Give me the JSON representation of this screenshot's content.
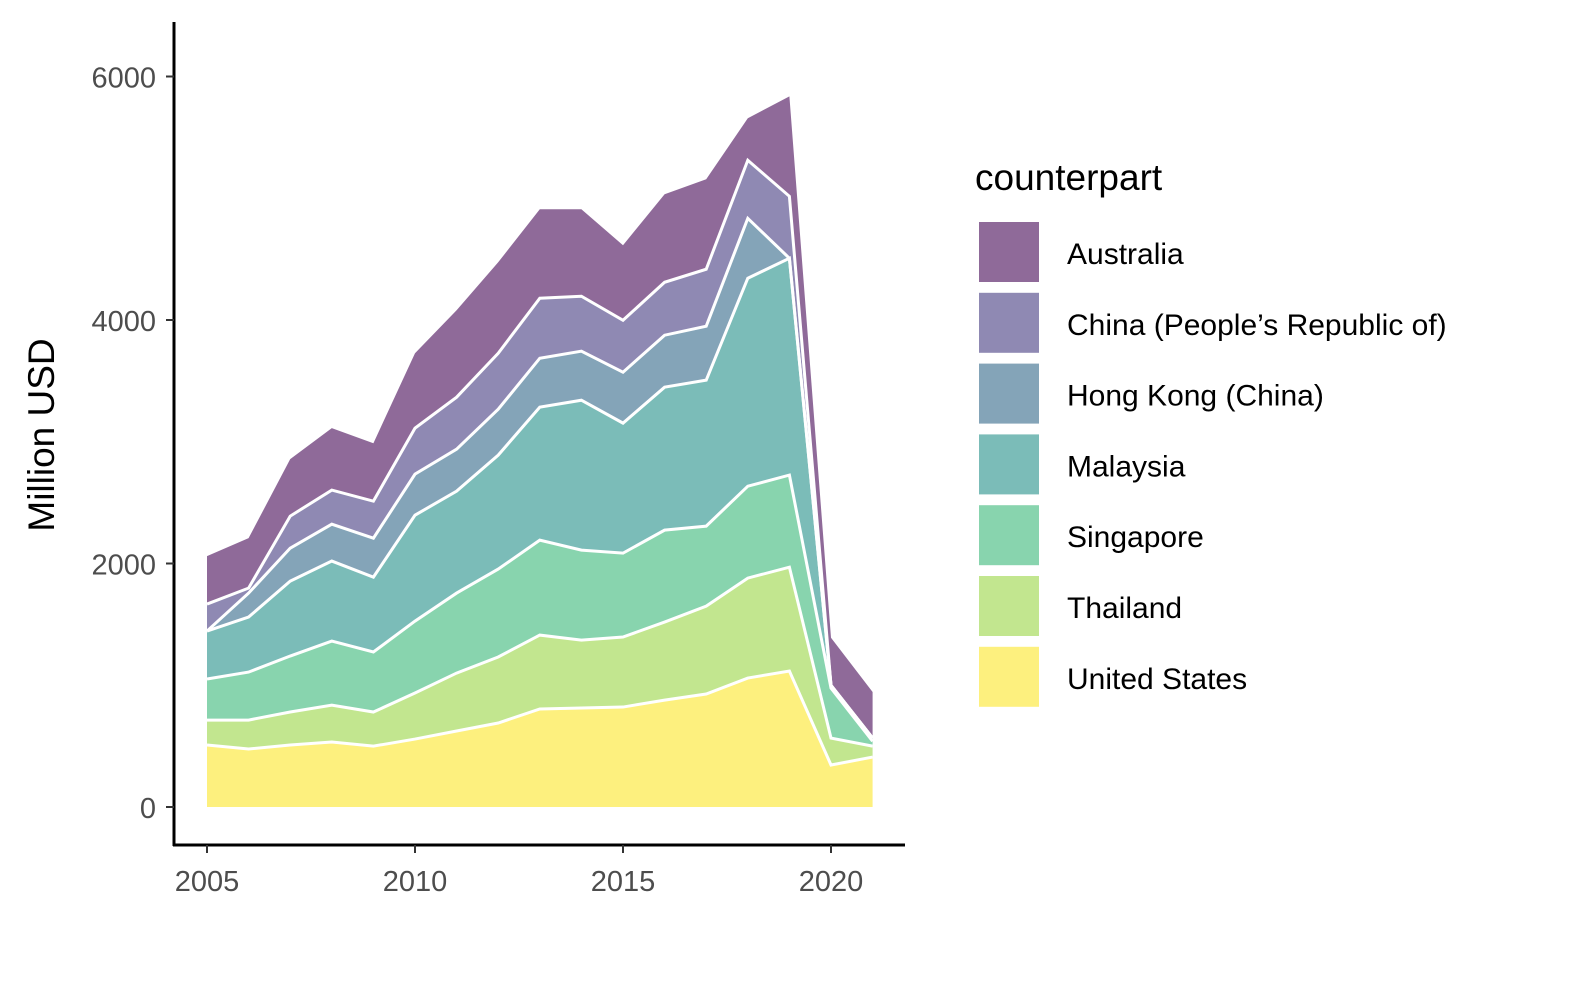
{
  "chart_data": {
    "type": "area",
    "stacked": true,
    "title": "",
    "xlabel": "",
    "ylabel": "Million USD",
    "xlim": [
      2004.2,
      2021.7
    ],
    "ylim": [
      -300,
      6400
    ],
    "x_ticks": [
      2005,
      2010,
      2015,
      2020
    ],
    "y_ticks": [
      0,
      2000,
      4000,
      6000
    ],
    "x_tick_labels": [
      "2005",
      "2010",
      "2015",
      "2020"
    ],
    "y_tick_labels": [
      "0",
      "2000",
      "4000",
      "6000"
    ],
    "legend_title": "counterpart",
    "legend_position": "right",
    "x": [
      2005,
      2006,
      2007,
      2008,
      2009,
      2010,
      2011,
      2012,
      2013,
      2014,
      2015,
      2016,
      2017,
      2018,
      2019,
      2020,
      2021
    ],
    "series": [
      {
        "name": "Australia",
        "color": "#8f6a99",
        "values": [
          394,
          410,
          468,
          509,
          476,
          615,
          714,
          747,
          731,
          715,
          616,
          723,
          739,
          345,
          821,
          390,
          379
        ]
      },
      {
        "name": "China (People’s Republic of)",
        "color": "#8f89b3",
        "values": [
          222,
          41,
          263,
          280,
          304,
          378,
          427,
          460,
          493,
          451,
          427,
          435,
          468,
          477,
          509,
          0,
          0
        ]
      },
      {
        "name": "Hong Kong (China)",
        "color": "#84a4b8",
        "values": [
          0,
          197,
          271,
          303,
          320,
          337,
          345,
          377,
          402,
          403,
          418,
          427,
          443,
          492,
          0,
          0,
          0
        ]
      },
      {
        "name": "Malaysia",
        "color": "#7bbcb8",
        "values": [
          394,
          452,
          615,
          657,
          615,
          870,
          837,
          936,
          1092,
          1231,
          1068,
          1174,
          1199,
          1708,
          1781,
          23,
          26
        ]
      },
      {
        "name": "Singapore",
        "color": "#88d4ae",
        "values": [
          337,
          394,
          460,
          526,
          493,
          591,
          657,
          722,
          780,
          739,
          689,
          755,
          657,
          755,
          756,
          411,
          40
        ]
      },
      {
        "name": "Thailand",
        "color": "#c2e68f",
        "values": [
          205,
          238,
          271,
          303,
          280,
          378,
          476,
          542,
          607,
          558,
          575,
          641,
          722,
          821,
          853,
          221,
          90
        ]
      },
      {
        "name": "United States",
        "color": "#fdf07e",
        "values": [
          509,
          476,
          509,
          534,
          500,
          558,
          624,
          690,
          805,
          813,
          821,
          878,
          928,
          1059,
          1117,
          345,
          410
        ]
      }
    ]
  }
}
